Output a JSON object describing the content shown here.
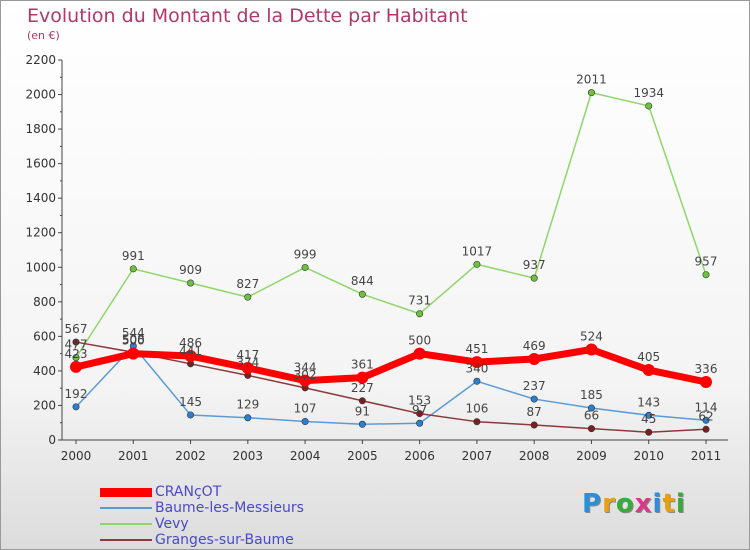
{
  "header": {
    "title": "Evolution du Montant de la Dette par Habitant",
    "subtitle": "(en €)"
  },
  "logo": {
    "text": "Proxiti"
  },
  "colors": {
    "text": "#b0386a",
    "axis": "#444444",
    "legend_text": "#4a4ac8"
  },
  "chart_data": {
    "type": "line",
    "title": "Evolution du Montant de la Dette par Habitant",
    "subtitle": "(en €)",
    "x": [
      "2000",
      "2001",
      "2002",
      "2003",
      "2004",
      "2005",
      "2006",
      "2007",
      "2008",
      "2009",
      "2010",
      "2011"
    ],
    "ylim": [
      0,
      2200
    ],
    "yticks": [
      0,
      200,
      400,
      600,
      800,
      1000,
      1200,
      1400,
      1600,
      1800,
      2000,
      2200
    ],
    "grid": false,
    "legend_position": "bottom-left",
    "series": [
      {
        "name": "CRANçOT",
        "color": "#ff0000",
        "marker": "#ff0000",
        "values": [
          423,
          500,
          486,
          417,
          344,
          361,
          500,
          451,
          469,
          524,
          405,
          336
        ]
      },
      {
        "name": "Baume-les-Messieurs",
        "color": "#5b9bd5",
        "marker": "#2a7fd0",
        "values": [
          192,
          544,
          145,
          129,
          107,
          91,
          97,
          340,
          237,
          185,
          143,
          114
        ]
      },
      {
        "name": "Vevy",
        "color": "#8fd66a",
        "marker": "#6cc43c",
        "values": [
          477,
          991,
          909,
          827,
          999,
          844,
          731,
          1017,
          937,
          2011,
          1934,
          957
        ]
      },
      {
        "name": "Granges-sur-Baume",
        "color": "#8a3a3a",
        "marker": "#7a2020",
        "values": [
          567,
          508,
          441,
          374,
          302,
          227,
          153,
          106,
          87,
          66,
          45,
          62
        ]
      }
    ]
  }
}
